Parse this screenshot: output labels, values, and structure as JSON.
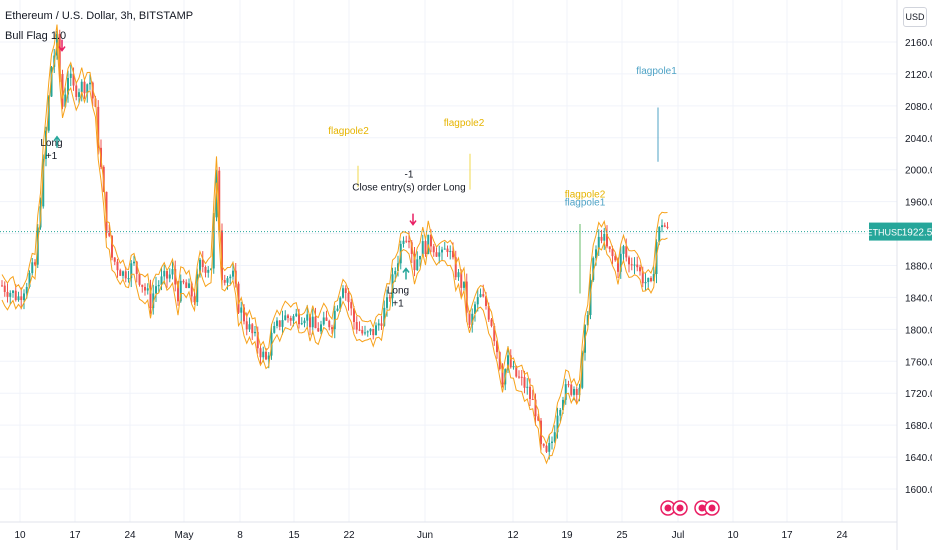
{
  "header": {
    "symbol_line": "Ethereum / U.S. Dollar, 3h, BITSTAMP",
    "strategy_line": "Bull Flag 1.0",
    "overlay_line": "Close entry(s) order Long",
    "currency": "USD"
  },
  "colors": {
    "candle_up": "#26a69a",
    "candle_down": "#ef5350",
    "envelope": "#f7a21b",
    "flagpole1": "#4fa3c6",
    "flagpole2": "#f2d94e",
    "flagpole_green": "#66bb6a",
    "last_price": "#26a69a",
    "entry_arrow": "#e91e63",
    "grid": "#f0f3fa"
  },
  "chart_data": {
    "type": "candlestick",
    "symbol": "ETHUSD",
    "exchange": "BITSTAMP",
    "interval": "3h",
    "ylim": [
      1600,
      2200
    ],
    "y_ticks": [
      1600,
      1640,
      1680,
      1720,
      1760,
      1800,
      1840,
      1880,
      1920,
      1960,
      2000,
      2040,
      2080,
      2120,
      2160
    ],
    "x_ticks": [
      "10",
      "17",
      "24",
      "May",
      "8",
      "15",
      "22",
      "Jun",
      "12",
      "19",
      "25",
      "Jul",
      "10",
      "17",
      "24"
    ],
    "grid": true,
    "last_price": 1922.5,
    "price_path": [
      [
        0,
        1855
      ],
      [
        3,
        1840
      ],
      [
        6,
        1880
      ],
      [
        9,
        2130
      ],
      [
        10,
        2160
      ],
      [
        11,
        2080
      ],
      [
        12,
        2120
      ],
      [
        13,
        2100
      ],
      [
        16,
        2110
      ],
      [
        17,
        2070
      ],
      [
        18,
        2000
      ],
      [
        19,
        1930
      ],
      [
        20,
        1890
      ],
      [
        22,
        1870
      ],
      [
        24,
        1880
      ],
      [
        26,
        1850
      ],
      [
        27,
        1835
      ],
      [
        28,
        1855
      ],
      [
        31,
        1870
      ],
      [
        32,
        1845
      ],
      [
        33,
        1855
      ],
      [
        35,
        1840
      ],
      [
        36,
        1880
      ],
      [
        38,
        1880
      ],
      [
        39,
        1990
      ],
      [
        40,
        1870
      ],
      [
        42,
        1865
      ],
      [
        43,
        1830
      ],
      [
        45,
        1800
      ],
      [
        48,
        1760
      ],
      [
        49,
        1790
      ],
      [
        51,
        1815
      ],
      [
        53,
        1815
      ],
      [
        55,
        1820
      ],
      [
        57,
        1800
      ],
      [
        60,
        1810
      ],
      [
        62,
        1860
      ],
      [
        64,
        1810
      ],
      [
        66,
        1790
      ],
      [
        68,
        1800
      ],
      [
        70,
        1830
      ],
      [
        72,
        1890
      ],
      [
        73,
        1920
      ],
      [
        74,
        1920
      ],
      [
        75,
        1880
      ],
      [
        76,
        1900
      ],
      [
        78,
        1910
      ],
      [
        80,
        1890
      ],
      [
        81,
        1905
      ],
      [
        82,
        1880
      ],
      [
        84,
        1850
      ],
      [
        85,
        1800
      ],
      [
        86,
        1830
      ],
      [
        87,
        1840
      ],
      [
        88,
        1830
      ],
      [
        89,
        1810
      ],
      [
        91,
        1740
      ],
      [
        92,
        1760
      ],
      [
        93,
        1745
      ],
      [
        95,
        1730
      ],
      [
        97,
        1700
      ],
      [
        98,
        1650
      ],
      [
        99,
        1640
      ],
      [
        100,
        1660
      ],
      [
        101,
        1700
      ],
      [
        102,
        1720
      ],
      [
        103,
        1725
      ],
      [
        105,
        1730
      ],
      [
        107,
        1860
      ],
      [
        108,
        1900
      ],
      [
        109,
        1920
      ],
      [
        110,
        1900
      ],
      [
        112,
        1880
      ],
      [
        113,
        1900
      ],
      [
        114,
        1880
      ],
      [
        115,
        1890
      ],
      [
        116,
        1870
      ],
      [
        117,
        1860
      ],
      [
        118,
        1850
      ],
      [
        119,
        1910
      ],
      [
        120,
        1935
      ],
      [
        121,
        1922.5
      ]
    ],
    "annotations": [
      {
        "text": "Long",
        "sub": "+1",
        "price": 2030,
        "slot": 9
      },
      {
        "text": "Long",
        "sub": "+1",
        "price": 1845,
        "slot": 72
      },
      {
        "text": "-1",
        "sub": "Close entry(s) order Long",
        "price": 1990,
        "slot": 74
      },
      {
        "text": "flagpole2",
        "price": 2045,
        "slot": 63
      },
      {
        "text": "flagpole2",
        "price": 2055,
        "slot": 84
      },
      {
        "text": "flagpole1",
        "price": 2120,
        "slot": 119
      },
      {
        "text": "flagpole2",
        "price": 1965,
        "slot": 106
      },
      {
        "text": "flagpole1",
        "price": 1955,
        "slot": 106
      }
    ],
    "price_label": {
      "symbol": "ETHUSD",
      "value": "1922.5"
    }
  }
}
